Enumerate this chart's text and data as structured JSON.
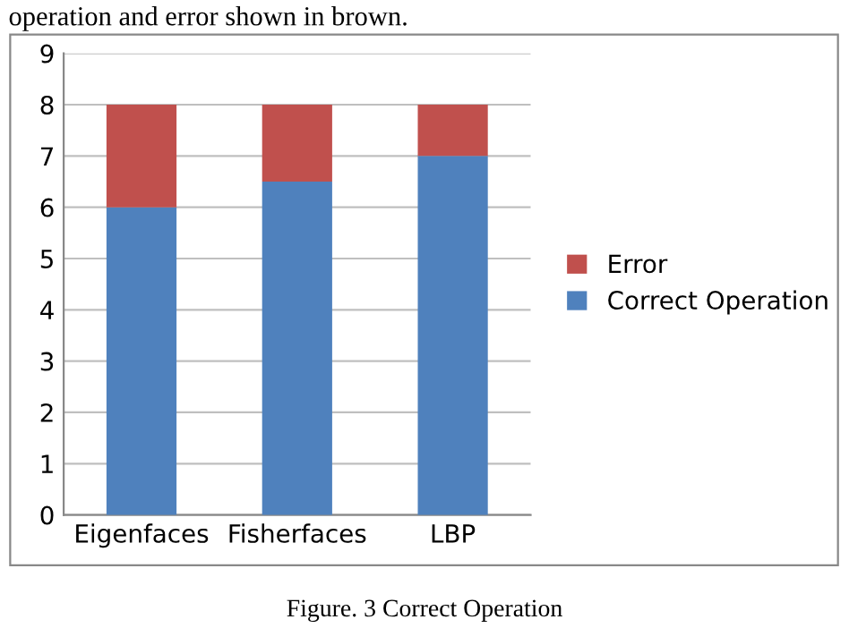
{
  "chart_data": {
    "type": "bar",
    "stacked": true,
    "categories": [
      "Eigenfaces",
      "Fisherfaces",
      "LBP"
    ],
    "series": [
      {
        "name": "Correct Operation",
        "color": "#4f81bd",
        "values": [
          6,
          6.5,
          7
        ]
      },
      {
        "name": "Error",
        "color": "#c0504d",
        "values": [
          2,
          1.5,
          1
        ]
      }
    ],
    "ylim": [
      0,
      9
    ],
    "yticks": [
      0,
      1,
      2,
      3,
      4,
      5,
      6,
      7,
      8,
      9
    ],
    "grid": "y",
    "legend": "right",
    "annotations": [
      "operation and error shown in brown.",
      "Figure. 3 Correct Operation"
    ]
  }
}
